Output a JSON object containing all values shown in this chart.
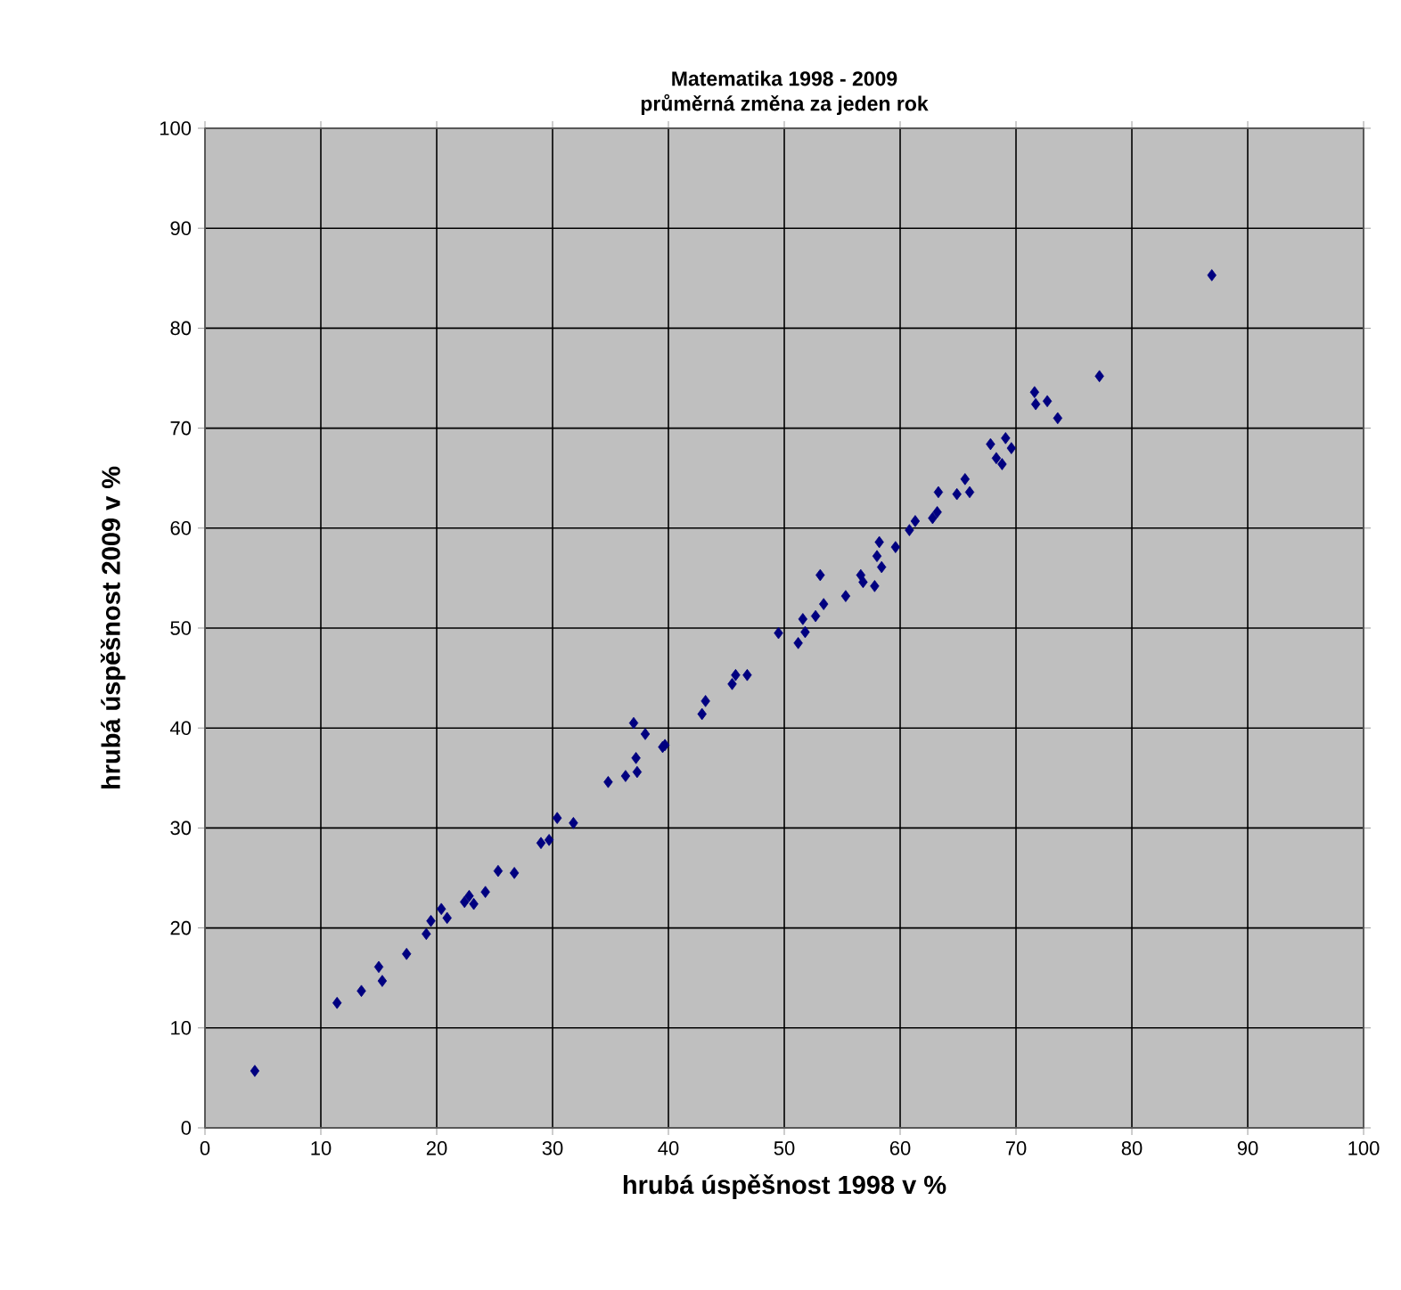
{
  "chart_data": {
    "type": "scatter",
    "title": "Matematika 1998 - 2009",
    "subtitle": "průměrná změna za jeden rok",
    "xlabel": "hrubá úspěšnost 1998 v %",
    "ylabel": "hrubá úspěšnost 2009 v %",
    "x": [
      4.3,
      11.4,
      13.5,
      15.0,
      15.3,
      17.4,
      19.1,
      19.5,
      20.4,
      20.9,
      22.4,
      22.8,
      23.2,
      24.2,
      25.3,
      26.7,
      29.0,
      29.7,
      30.4,
      31.8,
      34.8,
      36.3,
      37.3,
      37.2,
      37.0,
      38.0,
      39.5,
      39.7,
      42.9,
      43.2,
      45.5,
      45.8,
      46.8,
      49.5,
      51.2,
      51.8,
      51.6,
      52.7,
      53.4,
      55.3,
      53.1,
      56.6,
      56.8,
      57.8,
      58.2,
      58.0,
      58.4,
      59.6,
      60.8,
      61.3,
      62.8,
      63.2,
      63.3,
      64.9,
      65.6,
      66.0,
      67.8,
      68.3,
      68.8,
      69.1,
      69.6,
      71.6,
      71.7,
      72.7,
      73.6,
      77.2,
      86.9
    ],
    "values": [
      5.7,
      12.5,
      13.7,
      16.1,
      14.7,
      17.4,
      19.4,
      20.7,
      21.9,
      21.0,
      22.6,
      23.2,
      22.4,
      23.6,
      25.7,
      25.5,
      28.5,
      28.8,
      31.0,
      30.5,
      34.6,
      35.2,
      35.6,
      37.0,
      40.5,
      39.4,
      38.1,
      38.3,
      41.4,
      42.7,
      44.4,
      45.3,
      45.3,
      49.5,
      48.5,
      49.6,
      50.9,
      51.2,
      52.4,
      53.2,
      55.3,
      55.3,
      54.6,
      54.2,
      58.6,
      57.2,
      56.1,
      58.1,
      59.8,
      60.7,
      61.0,
      61.6,
      63.6,
      63.4,
      64.9,
      63.6,
      68.4,
      67.0,
      66.4,
      69.0,
      68.0,
      73.6,
      72.4,
      72.7,
      71.0,
      75.2,
      85.3
    ],
    "color": "#000080",
    "marker": "diamond",
    "grid": true,
    "xlim": [
      0,
      100
    ],
    "ylim": [
      0,
      100
    ],
    "xticks": [
      0,
      10,
      20,
      30,
      40,
      50,
      60,
      70,
      80,
      90,
      100
    ],
    "yticks": [
      0,
      10,
      20,
      30,
      40,
      50,
      60,
      70,
      80,
      90,
      100
    ]
  }
}
